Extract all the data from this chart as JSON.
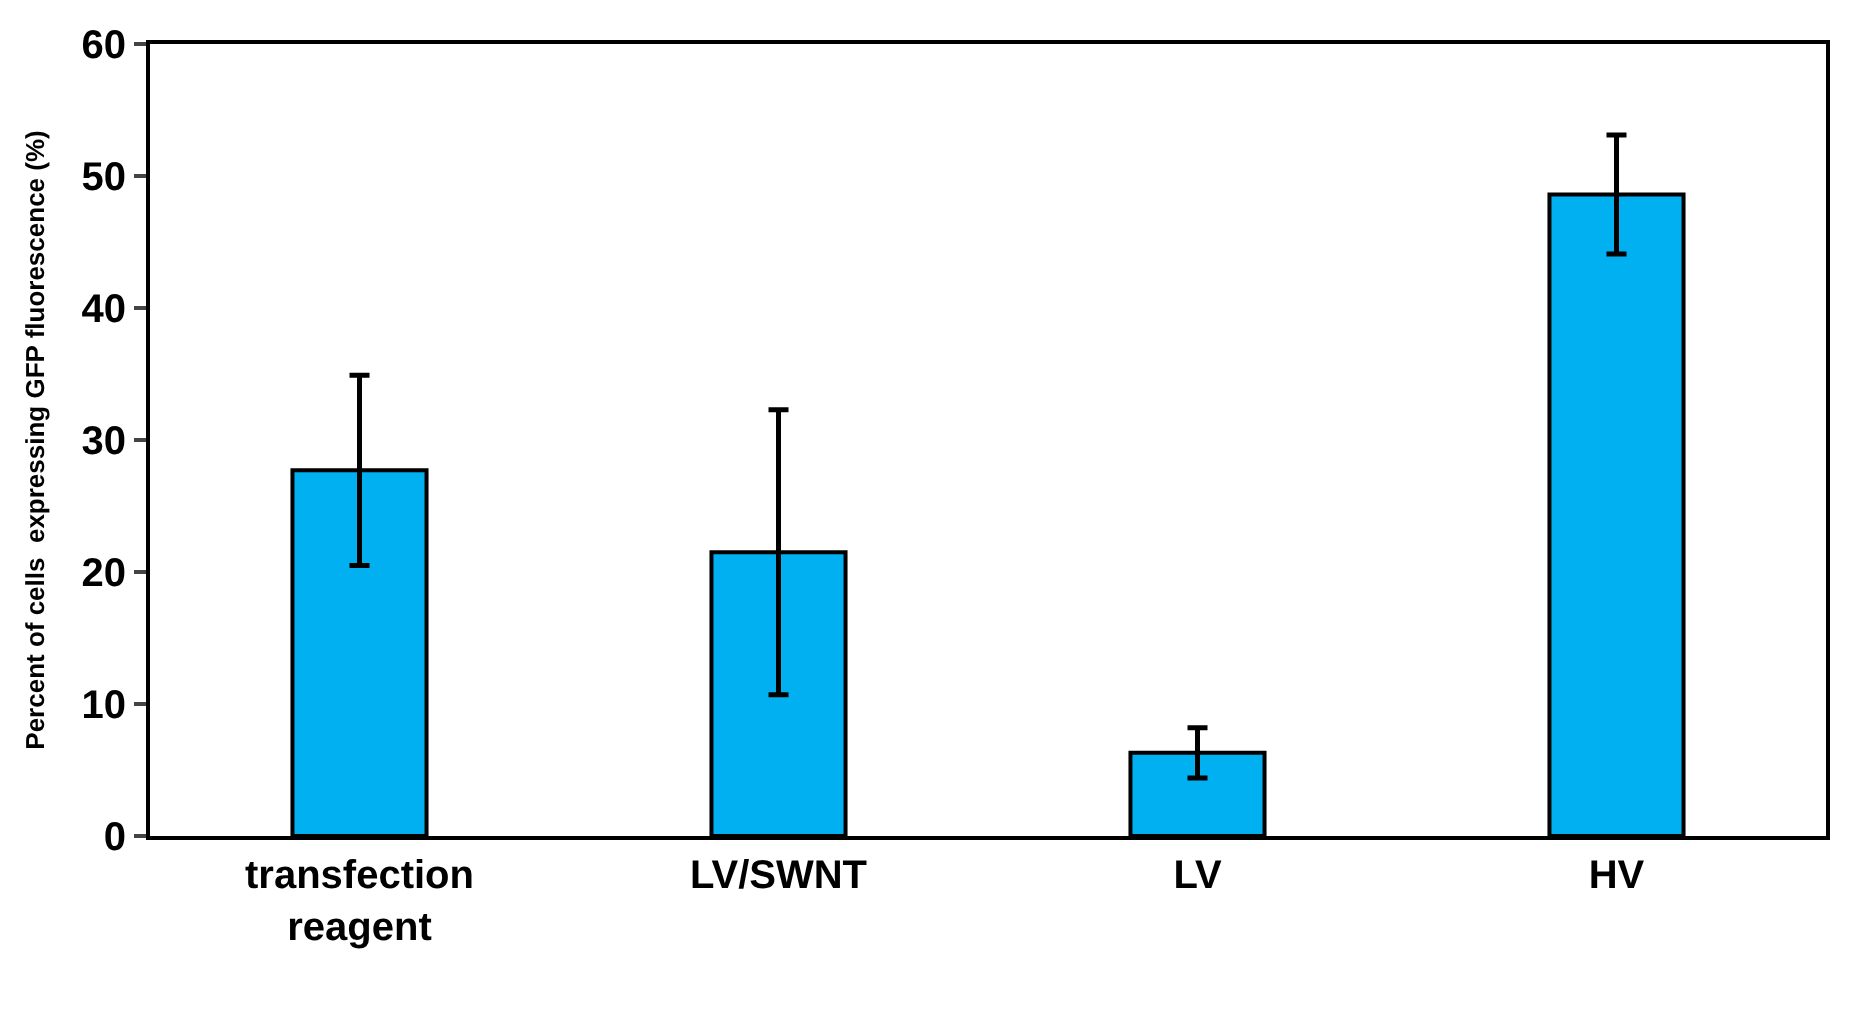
{
  "chart_data": {
    "type": "bar",
    "ylabel": "Percent of cells  expressing GFP fluorescence (%)",
    "categories": [
      "transfection reagent",
      "LV/SWNT",
      "LV",
      "HV"
    ],
    "values": [
      27.7,
      21.5,
      6.3,
      48.6
    ],
    "errors": [
      7.2,
      10.8,
      1.9,
      4.5
    ],
    "color": "#00b0f0",
    "ylim": [
      0,
      60
    ],
    "yticks": [
      0,
      10,
      20,
      30,
      40,
      50,
      60
    ]
  }
}
